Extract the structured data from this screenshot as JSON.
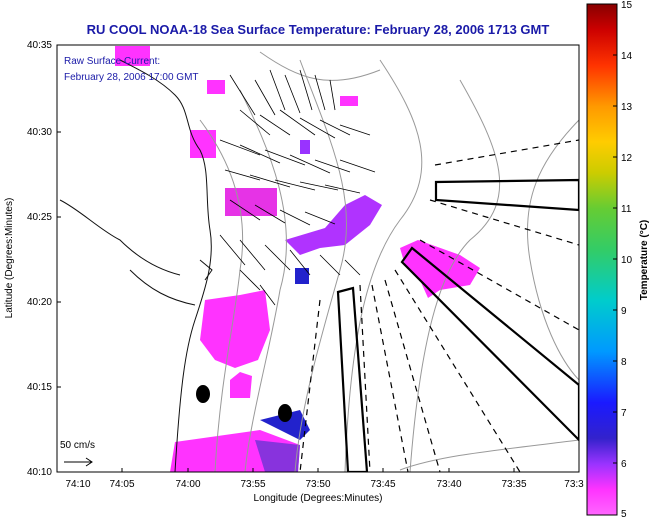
{
  "title": "RU COOL  NOAA-18  Sea Surface Temperature:  February 28, 2006 1713 GMT",
  "inset": {
    "line1": "Raw Surface Current:",
    "line2": "February 28, 2006 17:00 GMT"
  },
  "scale_label": "50 cm/s",
  "axes": {
    "xlabel": "Longitude (Degrees:Minutes)",
    "ylabel": "Latitude (Degrees:Minutes)",
    "xticks": [
      "74:10",
      "74:05",
      "74:00",
      "73:55",
      "73:50",
      "73:45",
      "73:40",
      "73:35",
      "73:3"
    ],
    "yticks": [
      "40:35",
      "40:30",
      "40:25",
      "40:20",
      "40:15",
      "40:10"
    ]
  },
  "colorbar": {
    "label": "Temperature (°C)",
    "ticks": [
      "15",
      "14",
      "13",
      "12",
      "11",
      "10",
      "9",
      "8",
      "7",
      "6",
      "5"
    ],
    "min": 5,
    "max": 15
  },
  "colors": {
    "title_text": "#1a1aa8",
    "sst_cold": "#ff33ff",
    "sst_mid": "#9933ff",
    "sst_warm": "#1a1acc"
  }
}
